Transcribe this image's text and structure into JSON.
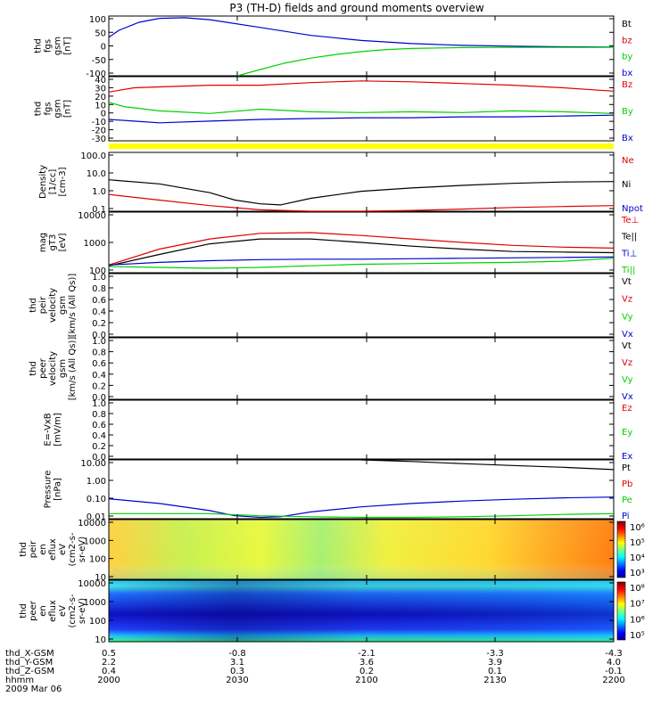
{
  "title": "P3 (TH-D) fields and ground moments overview",
  "colors": {
    "black": "#000000",
    "red": "#e00000",
    "green": "#00d000",
    "blue": "#0000d0",
    "yellow": "#ffff00"
  },
  "x_axis": {
    "rows": [
      {
        "label": "thd_X-GSM",
        "values": [
          "0.5",
          "-0.8",
          "-2.1",
          "-3.3",
          "-4.3"
        ]
      },
      {
        "label": "thd_Y-GSM",
        "values": [
          "2.2",
          "3.1",
          "3.6",
          "3.9",
          "4.0"
        ]
      },
      {
        "label": "thd_Z-GSM",
        "values": [
          "0.4",
          "0.3",
          "0.2",
          "0.1",
          "-0.1"
        ]
      },
      {
        "label": "hhmm",
        "values": [
          "2000",
          "2030",
          "2100",
          "2130",
          "2200"
        ]
      }
    ],
    "date": "2009 Mar 06"
  },
  "chart_data": [
    {
      "type": "line",
      "ylabel": [
        "thd",
        "fgs",
        "gsm",
        "[nT]"
      ],
      "ylim": [
        -100,
        110
      ],
      "yticks": [
        "100",
        "50",
        "0",
        "-50",
        "-100"
      ],
      "legend": [
        {
          "name": "Bt",
          "color": "#000000"
        },
        {
          "name": "bz",
          "color": "#e00000"
        },
        {
          "name": "by",
          "color": "#00d000"
        },
        {
          "name": "bx",
          "color": "#0000d0"
        }
      ],
      "series": [
        {
          "name": "bx",
          "color": "#0000d0",
          "x": [
            0,
            0.02,
            0.06,
            0.1,
            0.15,
            0.2,
            0.3,
            0.4,
            0.5,
            0.6,
            0.7,
            0.8,
            0.9,
            1.0
          ],
          "values": [
            35,
            60,
            88,
            102,
            104,
            97,
            70,
            42,
            24,
            13,
            7,
            4,
            2,
            1
          ]
        },
        {
          "name": "by",
          "color": "#00d000",
          "x": [
            0.255,
            0.3,
            0.35,
            0.4,
            0.45,
            0.5,
            0.55,
            0.6,
            0.7,
            0.8,
            1.0
          ],
          "values": [
            -100,
            -78,
            -55,
            -38,
            -25,
            -15,
            -8,
            -4,
            -1,
            0,
            0
          ]
        }
      ]
    },
    {
      "type": "line",
      "ylabel": [
        "thd",
        "fgs",
        "gsm",
        "[nT]"
      ],
      "ylim": [
        -35,
        40
      ],
      "yticks": [
        "40",
        "30",
        "20",
        "10",
        "0",
        "-10",
        "-20",
        "-30"
      ],
      "legend": [
        {
          "name": "Bz",
          "color": "#e00000"
        },
        {
          "name": "By",
          "color": "#00d000"
        },
        {
          "name": "Bx",
          "color": "#0000d0"
        }
      ],
      "series": [
        {
          "name": "Bz",
          "color": "#e00000",
          "x": [
            0,
            0.05,
            0.1,
            0.2,
            0.3,
            0.4,
            0.5,
            0.6,
            0.7,
            0.8,
            0.9,
            1.0
          ],
          "values": [
            22,
            27,
            28,
            30,
            30,
            33,
            35,
            34,
            32,
            30,
            27,
            23
          ]
        },
        {
          "name": "By",
          "color": "#00d000",
          "x": [
            0,
            0.03,
            0.1,
            0.2,
            0.3,
            0.4,
            0.5,
            0.6,
            0.7,
            0.8,
            0.9,
            1.0
          ],
          "values": [
            10,
            5,
            0,
            -3,
            2,
            -1,
            -2,
            -1,
            -2,
            0,
            -1,
            -3
          ]
        },
        {
          "name": "Bx",
          "color": "#0000d0",
          "x": [
            0,
            0.05,
            0.1,
            0.2,
            0.3,
            0.4,
            0.5,
            0.6,
            0.7,
            0.8,
            0.9,
            1.0
          ],
          "values": [
            -10,
            -12,
            -14,
            -12,
            -10,
            -9,
            -8,
            -8,
            -7,
            -7,
            -6,
            -5
          ]
        }
      ]
    },
    {
      "type": "line",
      "ylabel": [
        "Density",
        "[1/cc]",
        "[cm-3]"
      ],
      "yscale": "log",
      "ylim": [
        0.1,
        150
      ],
      "yticks": [
        "100.0",
        "10.0",
        "1.0",
        "0.1"
      ],
      "legend": [
        {
          "name": "Ne",
          "color": "#e00000"
        },
        {
          "name": "Ni",
          "color": "#000000"
        },
        {
          "name": "Npot",
          "color": "#0000d0"
        }
      ],
      "series": [
        {
          "name": "Ni",
          "color": "#000000",
          "x": [
            0,
            0.1,
            0.2,
            0.25,
            0.3,
            0.34,
            0.4,
            0.5,
            0.6,
            0.7,
            0.8,
            0.9,
            1.0
          ],
          "values": [
            5,
            3,
            1,
            0.4,
            0.25,
            0.22,
            0.5,
            1.2,
            1.8,
            2.5,
            3.2,
            3.8,
            4
          ]
        },
        {
          "name": "Ne",
          "color": "#e00000",
          "x": [
            0,
            0.1,
            0.2,
            0.3,
            0.4,
            0.5,
            0.6,
            0.7,
            0.8,
            0.9,
            1.0
          ],
          "values": [
            0.8,
            0.4,
            0.2,
            0.12,
            0.1,
            0.1,
            0.11,
            0.13,
            0.16,
            0.18,
            0.2
          ]
        }
      ]
    },
    {
      "type": "line",
      "ylabel": [
        "mag",
        "gT3",
        "[eV]"
      ],
      "yscale": "log",
      "ylim": [
        100,
        10000
      ],
      "yticks": [
        "10000",
        "1000",
        "100"
      ],
      "legend": [
        {
          "name": "Te⊥",
          "color": "#e00000"
        },
        {
          "name": "Te||",
          "color": "#000000"
        },
        {
          "name": "Ti⊥",
          "color": "#0000d0"
        },
        {
          "name": "Ti||",
          "color": "#00d000"
        }
      ],
      "series": [
        {
          "name": "Te⊥",
          "color": "#e00000",
          "x": [
            0,
            0.1,
            0.2,
            0.3,
            0.4,
            0.5,
            0.6,
            0.7,
            0.8,
            0.9,
            1.0
          ],
          "values": [
            180,
            600,
            1300,
            2000,
            2100,
            1700,
            1300,
            1000,
            800,
            700,
            650
          ]
        },
        {
          "name": "Te||",
          "color": "#000000",
          "x": [
            0,
            0.1,
            0.2,
            0.3,
            0.4,
            0.5,
            0.6,
            0.7,
            0.8,
            0.9,
            1.0
          ],
          "values": [
            170,
            400,
            900,
            1300,
            1300,
            1000,
            750,
            600,
            500,
            480,
            460
          ]
        },
        {
          "name": "Ti⊥",
          "color": "#0000d0",
          "x": [
            0,
            0.1,
            0.2,
            0.3,
            0.4,
            0.5,
            0.6,
            0.7,
            0.8,
            0.9,
            1.0
          ],
          "values": [
            180,
            220,
            250,
            270,
            280,
            280,
            290,
            300,
            310,
            320,
            330
          ]
        },
        {
          "name": "Ti||",
          "color": "#00d000",
          "x": [
            0,
            0.1,
            0.2,
            0.3,
            0.4,
            0.5,
            0.6,
            0.7,
            0.8,
            0.9,
            1.0
          ],
          "values": [
            160,
            150,
            140,
            150,
            170,
            190,
            200,
            210,
            220,
            240,
            300
          ]
        }
      ]
    },
    {
      "type": "line",
      "ylabel": [
        "thd",
        "peir",
        "velocity",
        "gsm",
        "[km/s (All Qs)]"
      ],
      "ylim": [
        0,
        1
      ],
      "yticks": [
        "1.0",
        "0.8",
        "0.6",
        "0.4",
        "0.2",
        "0.0"
      ],
      "legend": [
        {
          "name": "Vt",
          "color": "#000000"
        },
        {
          "name": "Vz",
          "color": "#e00000"
        },
        {
          "name": "Vy",
          "color": "#00d000"
        },
        {
          "name": "Vx",
          "color": "#0000d0"
        }
      ],
      "series": []
    },
    {
      "type": "line",
      "ylabel": [
        "thd",
        "peer",
        "velocity",
        "gsm",
        "[km/s (All Qs)]"
      ],
      "ylim": [
        0,
        1
      ],
      "yticks": [
        "1.0",
        "0.8",
        "0.6",
        "0.4",
        "0.2",
        "0.0"
      ],
      "legend": [
        {
          "name": "Vt",
          "color": "#000000"
        },
        {
          "name": "Vz",
          "color": "#e00000"
        },
        {
          "name": "Vy",
          "color": "#00d000"
        },
        {
          "name": "Vx",
          "color": "#0000d0"
        }
      ],
      "series": []
    },
    {
      "type": "line",
      "ylabel": [
        "E=-VxB",
        "[mV/m]"
      ],
      "ylim": [
        0,
        1
      ],
      "yticks": [
        "1.0",
        "0.8",
        "0.6",
        "0.4",
        "0.2",
        "0.0"
      ],
      "legend": [
        {
          "name": "Ez",
          "color": "#e00000"
        },
        {
          "name": "Ey",
          "color": "#00d000"
        },
        {
          "name": "Ex",
          "color": "#0000d0"
        }
      ],
      "series": []
    },
    {
      "type": "line",
      "ylabel": [
        "Pressure",
        "[nPa]"
      ],
      "yscale": "log",
      "ylim": [
        0.01,
        30
      ],
      "yticks": [
        "10.00",
        "1.00",
        "0.10",
        "0.01"
      ],
      "legend": [
        {
          "name": "Pt",
          "color": "#000000"
        },
        {
          "name": "Pb",
          "color": "#e00000"
        },
        {
          "name": "Pe",
          "color": "#00d000"
        },
        {
          "name": "Pi",
          "color": "#0000d0"
        }
      ],
      "series": [
        {
          "name": "Pt",
          "color": "#000000",
          "x": [
            0.5,
            0.6,
            0.7,
            0.8,
            0.9,
            1.0
          ],
          "values": [
            30,
            24,
            18,
            14,
            11,
            8
          ]
        },
        {
          "name": "Pi",
          "color": "#0000d0",
          "x": [
            0,
            0.1,
            0.2,
            0.25,
            0.3,
            0.34,
            0.4,
            0.5,
            0.6,
            0.7,
            0.8,
            0.9,
            1.0
          ],
          "values": [
            0.15,
            0.08,
            0.03,
            0.015,
            0.012,
            0.013,
            0.025,
            0.05,
            0.08,
            0.11,
            0.14,
            0.17,
            0.19
          ]
        },
        {
          "name": "Pe",
          "color": "#00d000",
          "x": [
            0,
            0.1,
            0.2,
            0.3,
            0.4,
            0.5,
            0.6,
            0.7,
            0.8,
            0.9,
            1.0
          ],
          "values": [
            0.02,
            0.02,
            0.02,
            0.015,
            0.013,
            0.012,
            0.012,
            0.013,
            0.015,
            0.018,
            0.02
          ]
        }
      ]
    },
    {
      "type": "heatmap",
      "ylabel": [
        "thd",
        "peir",
        "en",
        "eflux",
        "eV",
        "(cm2-s-",
        "sr-eV)"
      ],
      "yscale": "log",
      "ylim": [
        8,
        20000
      ],
      "yticks": [
        "10000",
        "1000",
        "100",
        "10"
      ],
      "colorbar": {
        "ticks": [
          "10⁶",
          "10⁵",
          "10⁴",
          "10³"
        ],
        "range": [
          1000,
          1000000
        ]
      },
      "description_free_levels": [
        0.62,
        0.7,
        0.55,
        0.45,
        0.5,
        0.6,
        0.72,
        0.85
      ]
    },
    {
      "type": "heatmap",
      "ylabel": [
        "thd",
        "peer",
        "en",
        "eflux",
        "eV",
        "(cm2-s-",
        "sr-eV)"
      ],
      "yscale": "log",
      "ylim": [
        8,
        20000
      ],
      "yticks": [
        "10000",
        "1000",
        "100",
        "10"
      ],
      "colorbar": {
        "ticks": [
          "10⁸",
          "10⁷",
          "10⁶",
          "10⁵"
        ],
        "range": [
          100000,
          100000000
        ]
      }
    }
  ]
}
